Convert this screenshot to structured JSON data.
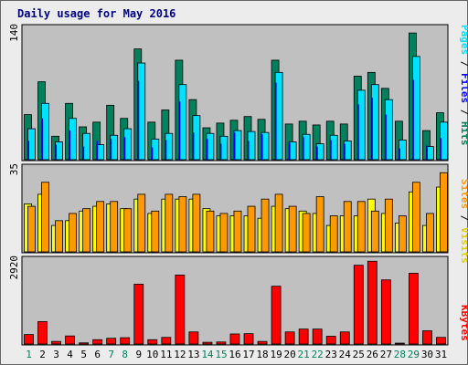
{
  "chart_data": [
    {
      "type": "bar",
      "title": "Daily usage for May 2016",
      "categories": [
        "1",
        "2",
        "3",
        "4",
        "5",
        "6",
        "7",
        "8",
        "9",
        "10",
        "11",
        "12",
        "13",
        "14",
        "15",
        "16",
        "17",
        "18",
        "19",
        "20",
        "21",
        "22",
        "23",
        "24",
        "25",
        "26",
        "27",
        "28",
        "29",
        "30",
        "31"
      ],
      "weekend_days": [
        "1",
        "7",
        "8",
        "14",
        "15",
        "21",
        "22",
        "28",
        "29"
      ],
      "ylabel": [
        "Pages",
        "Files",
        "Hits"
      ],
      "y_max_label": "140",
      "ylim": [
        0,
        140
      ],
      "series": [
        {
          "name": "Hits",
          "color": "#00805c",
          "values": [
            48,
            83,
            25,
            60,
            35,
            40,
            58,
            44,
            118,
            40,
            53,
            106,
            64,
            34,
            39,
            42,
            46,
            43,
            106,
            38,
            41,
            37,
            41,
            38,
            89,
            93,
            76,
            41,
            135,
            31,
            50
          ]
        },
        {
          "name": "Files",
          "color": "#00e0ff",
          "values": [
            33,
            60,
            19,
            44,
            28,
            16,
            26,
            33,
            103,
            22,
            28,
            80,
            47,
            28,
            25,
            31,
            30,
            29,
            93,
            19,
            27,
            17,
            26,
            20,
            74,
            80,
            64,
            21,
            110,
            14,
            40
          ]
        },
        {
          "name": "Pages",
          "color": "#0000ff",
          "values": [
            20,
            44,
            16,
            31,
            14,
            20,
            22,
            24,
            84,
            13,
            21,
            62,
            29,
            22,
            17,
            29,
            20,
            27,
            82,
            18,
            24,
            14,
            21,
            17,
            59,
            66,
            48,
            12,
            85,
            15,
            23
          ]
        }
      ]
    },
    {
      "type": "bar",
      "ylabel": [
        "Sites",
        "Visits"
      ],
      "y_max_label": "35",
      "ylim": [
        0,
        35
      ],
      "series": [
        {
          "name": "Visits",
          "color": "#ffff00",
          "values": [
            20,
            24,
            11,
            13,
            17,
            19,
            20,
            18,
            22,
            16,
            22,
            22,
            22,
            18,
            15,
            15,
            15,
            14,
            19,
            18,
            17,
            16,
            11,
            15,
            15,
            22,
            16,
            12,
            25,
            11,
            27
          ]
        },
        {
          "name": "Sites",
          "color": "#ff9900",
          "values": [
            19,
            29,
            13,
            16,
            18,
            21,
            21,
            18,
            24,
            17,
            24,
            23,
            24,
            17,
            16,
            17,
            19,
            22,
            24,
            19,
            16,
            23,
            15,
            21,
            21,
            17,
            22,
            15,
            29,
            16,
            33
          ]
        }
      ]
    },
    {
      "type": "bar",
      "ylabel": [
        "KBytes"
      ],
      "y_max_label": "2920",
      "ylim": [
        0,
        2920
      ],
      "series": [
        {
          "name": "KBytes",
          "color": "#ff0000",
          "values": [
            330,
            780,
            90,
            280,
            40,
            150,
            200,
            220,
            2080,
            150,
            230,
            2400,
            420,
            60,
            70,
            350,
            360,
            90,
            2010,
            420,
            520,
            520,
            270,
            420,
            2740,
            2880,
            2230,
            30,
            2460,
            460,
            230
          ]
        }
      ]
    }
  ]
}
